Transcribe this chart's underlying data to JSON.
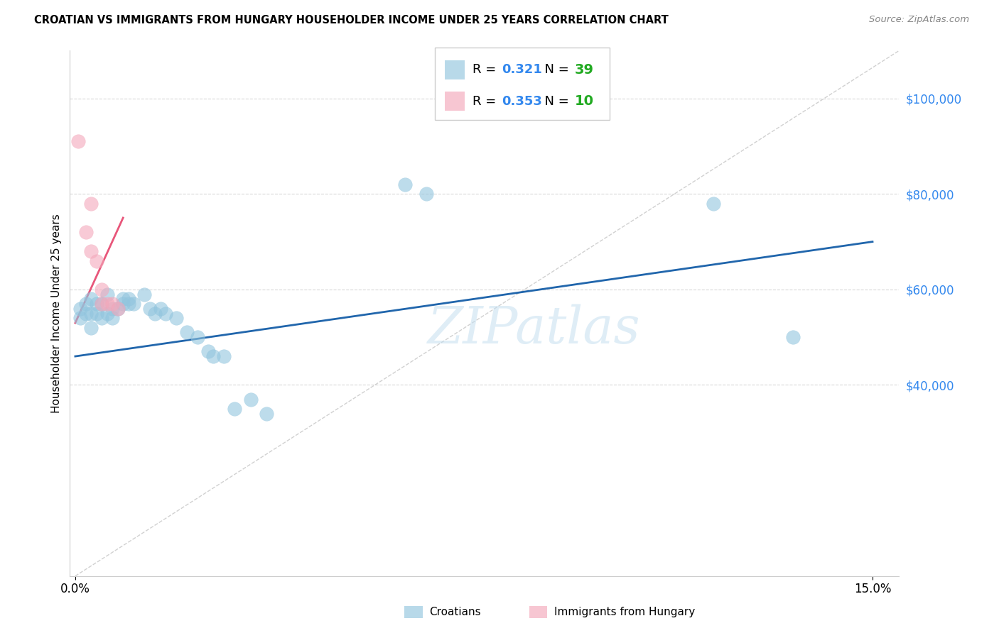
{
  "title": "CROATIAN VS IMMIGRANTS FROM HUNGARY HOUSEHOLDER INCOME UNDER 25 YEARS CORRELATION CHART",
  "source": "Source: ZipAtlas.com",
  "ylabel": "Householder Income Under 25 years",
  "ytick_labels": [
    "$40,000",
    "$60,000",
    "$80,000",
    "$100,000"
  ],
  "ytick_values": [
    40000,
    60000,
    80000,
    100000
  ],
  "xlim": [
    -0.001,
    0.155
  ],
  "ylim": [
    0,
    110000
  ],
  "watermark": "ZIPatlas",
  "legend_v1": "0.321",
  "legend_nv1": "39",
  "legend_v2": "0.353",
  "legend_nv2": "10",
  "legend_label1": "Croatians",
  "legend_label2": "Immigrants from Hungary",
  "blue_color": "#92c5de",
  "pink_color": "#f4a8bb",
  "blue_line_color": "#2166ac",
  "pink_line_color": "#e8567a",
  "diagonal_color": "#cccccc",
  "blue_text_color": "#3388ee",
  "nval_color": "#22aa22",
  "grid_color": "#d8d8d8",
  "croatians_x": [
    0.001,
    0.001,
    0.002,
    0.002,
    0.003,
    0.003,
    0.003,
    0.004,
    0.004,
    0.005,
    0.005,
    0.006,
    0.006,
    0.007,
    0.007,
    0.008,
    0.009,
    0.009,
    0.01,
    0.01,
    0.011,
    0.013,
    0.014,
    0.015,
    0.016,
    0.017,
    0.019,
    0.021,
    0.023,
    0.025,
    0.026,
    0.028,
    0.03,
    0.033,
    0.036,
    0.062,
    0.066,
    0.12,
    0.135
  ],
  "croatians_y": [
    56000,
    54000,
    57000,
    55000,
    58000,
    55000,
    52000,
    57000,
    55000,
    57000,
    54000,
    59000,
    55000,
    56000,
    54000,
    56000,
    58000,
    57000,
    57000,
    58000,
    57000,
    59000,
    56000,
    55000,
    56000,
    55000,
    54000,
    51000,
    50000,
    47000,
    46000,
    46000,
    35000,
    37000,
    34000,
    82000,
    80000,
    78000,
    50000
  ],
  "hungary_x": [
    0.0005,
    0.002,
    0.003,
    0.003,
    0.004,
    0.005,
    0.005,
    0.006,
    0.007,
    0.008
  ],
  "hungary_y": [
    91000,
    72000,
    78000,
    68000,
    66000,
    60000,
    57000,
    57000,
    57000,
    56000
  ],
  "blue_trend_x": [
    0.0,
    0.15
  ],
  "blue_trend_y": [
    46000,
    70000
  ],
  "pink_trend_x": [
    0.0,
    0.009
  ],
  "pink_trend_y": [
    53000,
    75000
  ]
}
